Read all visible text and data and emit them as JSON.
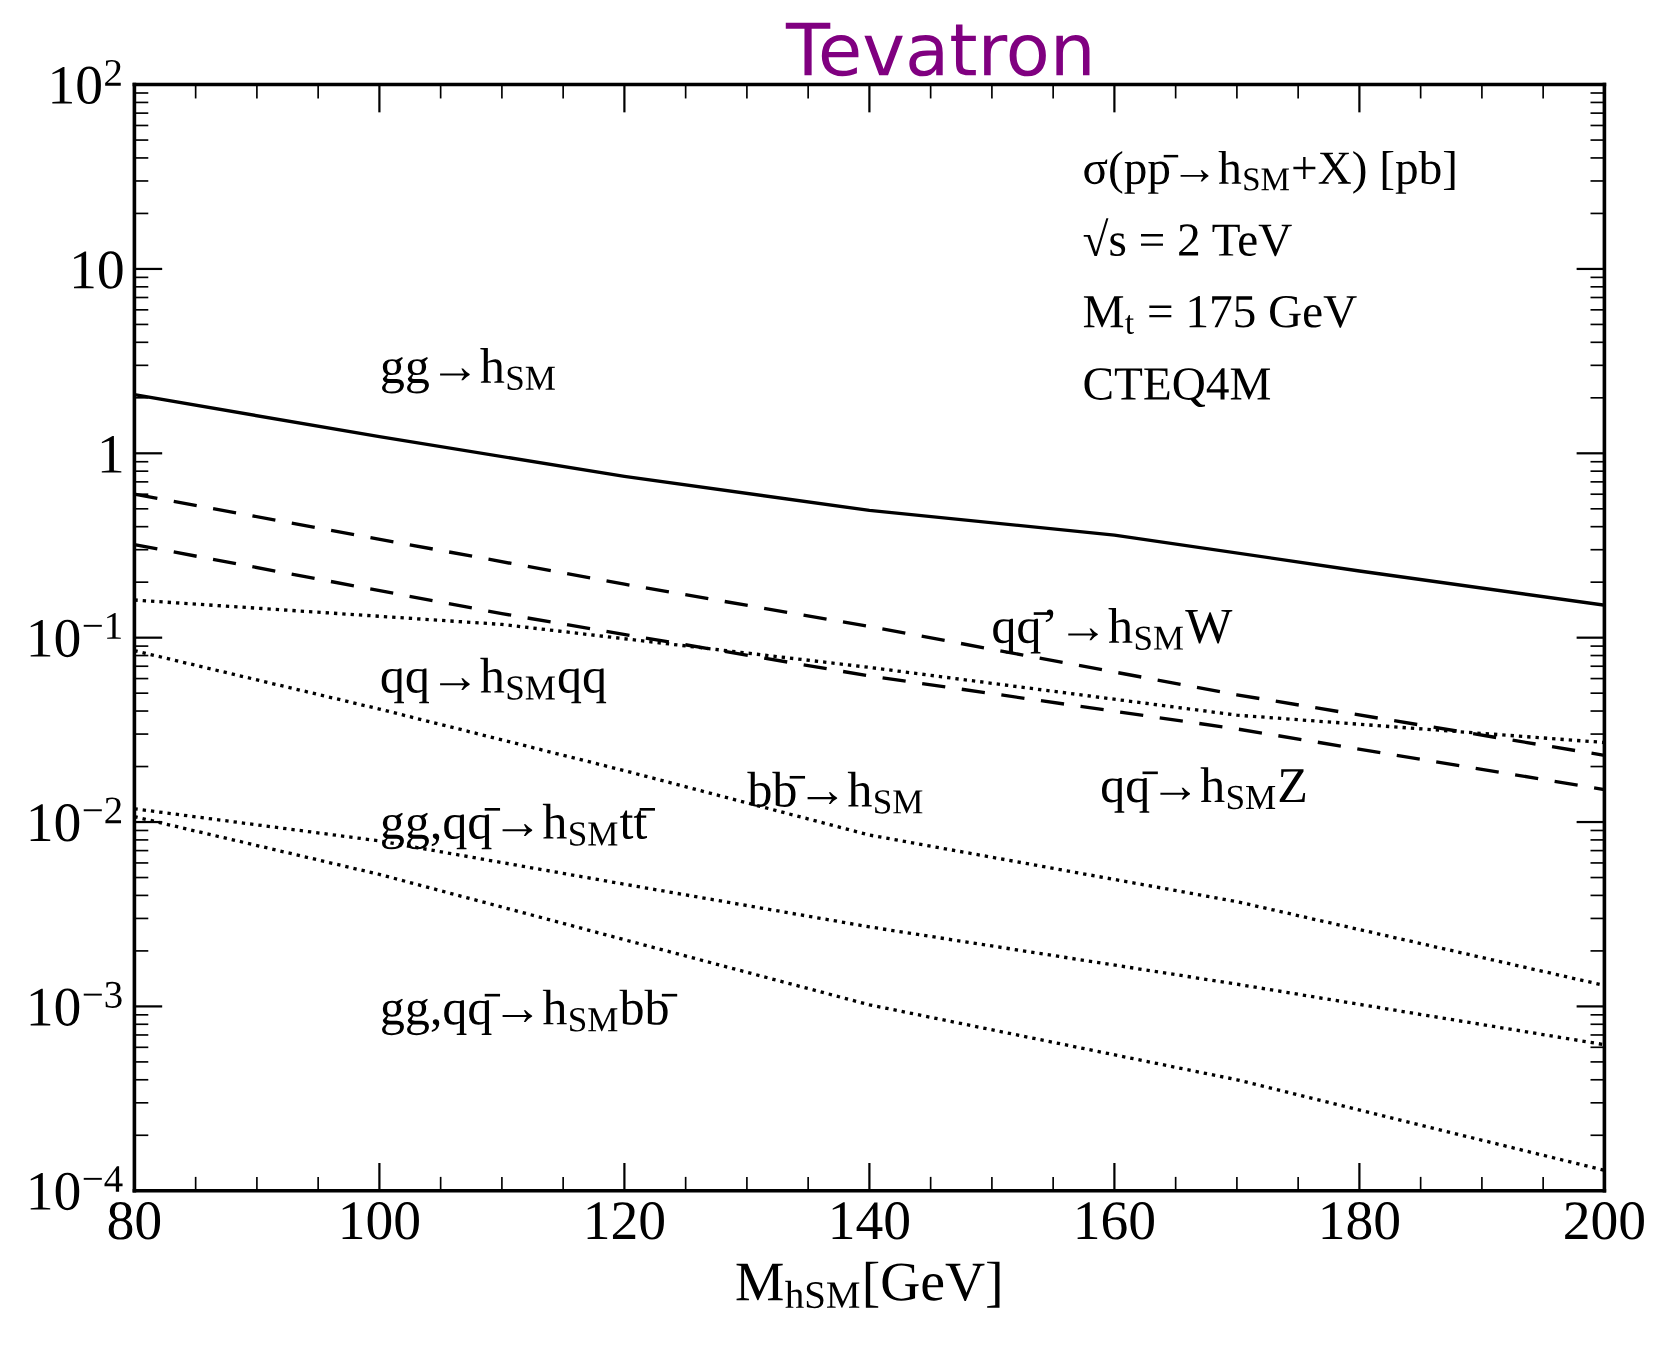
{
  "chart_data": {
    "type": "line",
    "title": "Tevatron",
    "xlabel": "M$_{hSM}$[GeV]",
    "xlim": [
      80,
      200
    ],
    "xticks": [
      80,
      100,
      120,
      140,
      160,
      180,
      200
    ],
    "ylim": [
      0.0001,
      100
    ],
    "yticks": [
      {
        "value": 0.0001,
        "label": "10$^{−4}$"
      },
      {
        "value": 0.001,
        "label": "10$^{−3}$"
      },
      {
        "value": 0.01,
        "label": "10$^{−2}$"
      },
      {
        "value": 0.1,
        "label": "10$^{−1}$"
      },
      {
        "value": 1,
        "label": "1"
      },
      {
        "value": 10,
        "label": "10"
      },
      {
        "value": 100,
        "label": "10$^{2}$"
      }
    ],
    "log": "y",
    "grid": false,
    "legend": false,
    "series": [
      {
        "name": "gg→h$_{SM}$",
        "color": "#000000",
        "line_style": "solid",
        "x": [
          80,
          100,
          120,
          140,
          160,
          180,
          200
        ],
        "values": [
          2.08,
          1.23,
          0.75,
          0.49,
          0.36,
          0.23,
          0.15
        ]
      },
      {
        "name": "qq̄’→h$_{SM}$W",
        "color": "#000000",
        "line_style": "dashed",
        "x": [
          80,
          120,
          140,
          170,
          200
        ],
        "values": [
          0.6,
          0.195,
          0.115,
          0.049,
          0.023
        ]
      },
      {
        "name": "qq̄→h$_{SM}$Z",
        "color": "#000000",
        "line_style": "dashed",
        "x": [
          80,
          110,
          140,
          170,
          200
        ],
        "values": [
          0.32,
          0.135,
          0.062,
          0.032,
          0.015
        ]
      },
      {
        "name": "qq→h$_{SM}$qq",
        "color": "#000000",
        "line_style": "dotted",
        "x": [
          80,
          110,
          140,
          170,
          200
        ],
        "values": [
          0.16,
          0.118,
          0.069,
          0.038,
          0.027
        ]
      },
      {
        "name": "bb̄→h$_{SM}$",
        "color": "#000000",
        "line_style": "dotted",
        "x": [
          80,
          100,
          120,
          140,
          170,
          200
        ],
        "values": [
          0.085,
          0.041,
          0.019,
          0.0085,
          0.0037,
          0.0013
        ]
      },
      {
        "name": "gg,qq̄→h$_{SM}$tt̄",
        "color": "#000000",
        "line_style": "dotted",
        "x": [
          80,
          100,
          120,
          140,
          170,
          200
        ],
        "values": [
          0.0118,
          0.0079,
          0.0046,
          0.0027,
          0.00132,
          0.00062
        ]
      },
      {
        "name": "gg,qq̄→h$_{SM}$bb̄",
        "color": "#000000",
        "line_style": "dotted",
        "x": [
          80,
          100,
          120,
          140,
          170,
          200
        ],
        "values": [
          0.0107,
          0.0052,
          0.0023,
          0.00102,
          0.0004,
          0.000129
        ]
      }
    ],
    "annotations": [
      "σ(pp̄→h$_{SM}$+X) [pb]",
      "√s = 2 TeV",
      "M$_{t}$ = 175 GeV",
      "CTEQ4M"
    ]
  }
}
